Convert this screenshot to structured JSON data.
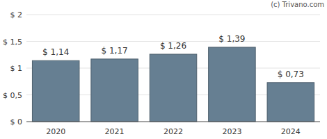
{
  "chart_data": {
    "type": "bar",
    "annotations": [
      "(c) Trivano.com"
    ],
    "categories": [
      "2020",
      "2021",
      "2022",
      "2023",
      "2024"
    ],
    "values": [
      1.14,
      1.17,
      1.26,
      1.39,
      0.73
    ],
    "value_labels": [
      "$ 1,14",
      "$ 1,17",
      "$ 1,26",
      "$ 1,39",
      "$ 0,73"
    ],
    "data_labels": true,
    "color": "#667f92",
    "ylim": [
      0,
      2
    ],
    "yticks": [
      {
        "value": 0,
        "label": "$ 0"
      },
      {
        "value": 0.5,
        "label": "$ 0,5"
      },
      {
        "value": 1,
        "label": "$ 1"
      },
      {
        "value": 1.5,
        "label": "$ 1,5"
      },
      {
        "value": 2,
        "label": "$ 2"
      }
    ],
    "grid": true
  }
}
